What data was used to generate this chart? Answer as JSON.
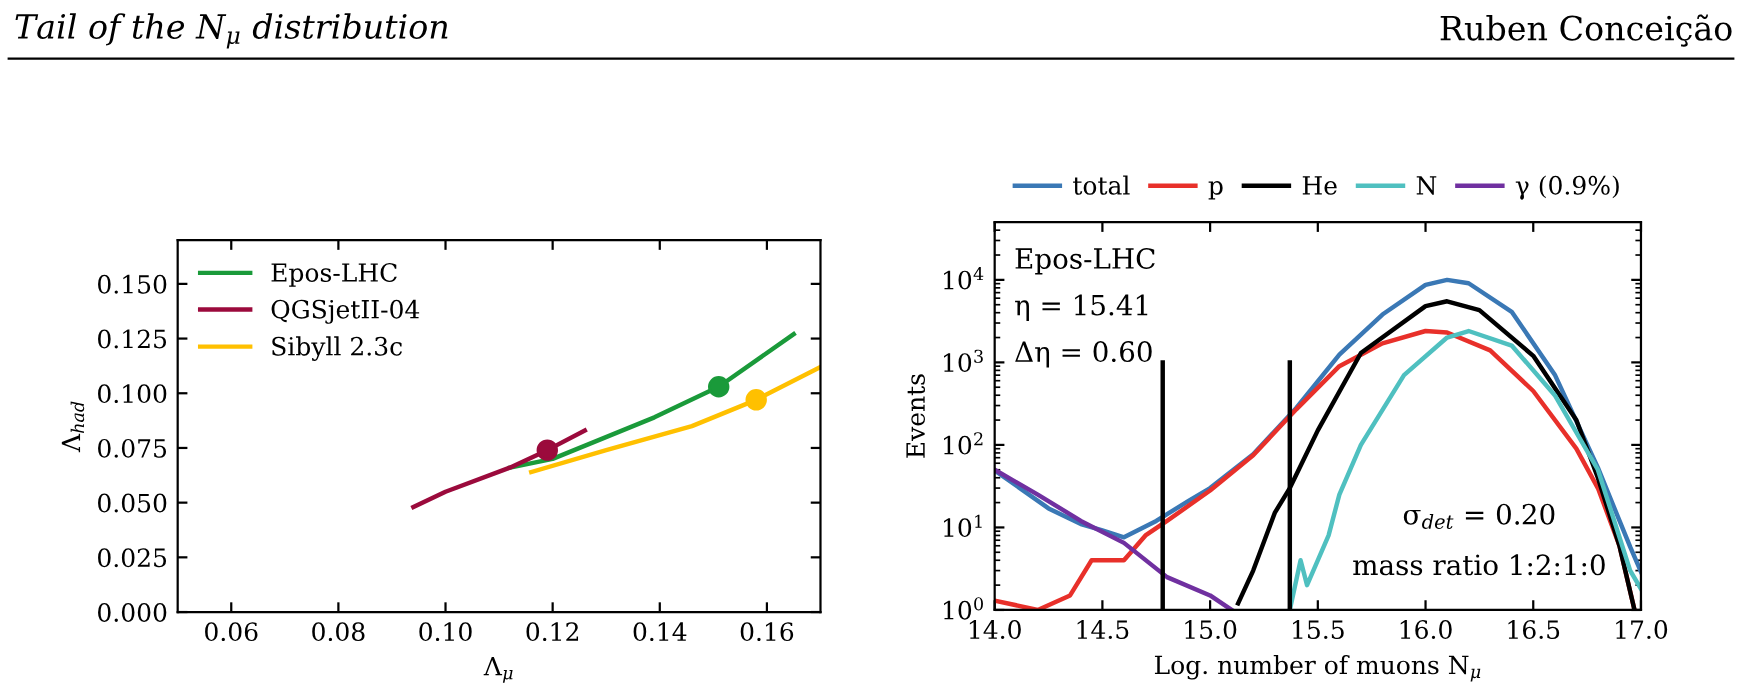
{
  "chart_data": [
    {
      "type": "line",
      "annotations": [
        "Tail of the N$_{μ}$ distribution"
      ],
      "xlabel": "Λ$_{μ}$",
      "ylabel": "Λ$_{had}$",
      "xlim": [
        0.05,
        0.17
      ],
      "ylim": [
        0,
        0.17
      ],
      "xticks": [
        0.06,
        0.08,
        {
          "value": 0.1,
          "label": "0.10"
        },
        0.12,
        0.14,
        0.16
      ],
      "yticks": [
        {
          "value": 0,
          "label": "0.000"
        },
        {
          "value": 0.025,
          "label": "0.025"
        },
        {
          "value": 0.05,
          "label": "0.050"
        },
        {
          "value": 0.075,
          "label": "0.075"
        },
        {
          "value": 0.1,
          "label": "0.100"
        },
        {
          "value": 0.125,
          "label": "0.125"
        },
        {
          "value": 0.15,
          "label": "0.150"
        }
      ],
      "legend": "top left",
      "grid": false,
      "series": [
        {
          "name": "Epos-LHC",
          "color": "#1a9a3a",
          "x": [
            0.112,
            0.12,
            0.139,
            0.151,
            0.165
          ],
          "values": [
            0.066,
            0.07,
            0.089,
            0.103,
            0.127
          ]
        },
        {
          "name": "QGSjetII-04",
          "color": "#9b0a3c",
          "x": [
            0.094,
            0.1,
            0.112,
            0.119,
            0.126
          ],
          "values": [
            0.048,
            0.055,
            0.066,
            0.074,
            0.083
          ]
        },
        {
          "name": "Sibyll 2.3c",
          "color": "#ffc000",
          "x": [
            0.116,
            0.13,
            0.146,
            0.158,
            0.17
          ],
          "values": [
            0.064,
            0.074,
            0.085,
            0.097,
            0.112
          ]
        },
        {
          "type": "scatter",
          "color": "#1a9a3a",
          "x": [
            0.151
          ],
          "values": [
            0.103
          ]
        },
        {
          "type": "scatter",
          "color": "#9b0a3c",
          "x": [
            0.119
          ],
          "values": [
            0.074
          ]
        },
        {
          "type": "scatter",
          "color": "#ffc000",
          "x": [
            0.158
          ],
          "values": [
            0.097
          ]
        }
      ]
    },
    {
      "type": "line",
      "annotations": [
        "Ruben Conceição",
        "Epos-LHC",
        "η = 15.41",
        "Δη = 0.60",
        "σ$_{det}$ = 0.20",
        "mass ratio 1:2:1:0"
      ],
      "xlabel": "Log. number of muons N$_{μ}$",
      "ylabel": "Events",
      "log": "y",
      "xlim": [
        14,
        17
      ],
      "ylim": [
        1,
        50000
      ],
      "xticks": [
        {
          "value": 14,
          "label": "14.0"
        },
        {
          "value": 14.5,
          "label": "14.5"
        },
        {
          "value": 15,
          "label": "15.0"
        },
        {
          "value": 15.5,
          "label": "15.5"
        },
        {
          "value": 16,
          "label": "16.0"
        },
        {
          "value": 16.5,
          "label": "16.5"
        },
        {
          "value": 17,
          "label": "17.0"
        }
      ],
      "yticks": [
        {
          "value": 1,
          "label": "10$^{0}$"
        },
        {
          "value": 10,
          "label": "10$^{1}$"
        },
        {
          "value": 100,
          "label": "10$^{2}$"
        },
        {
          "value": 1000,
          "label": "10$^{3}$"
        },
        {
          "value": 10000,
          "label": "10$^{4}$"
        }
      ],
      "legend": "top",
      "grid": false,
      "series": [
        {
          "name": "total",
          "color": "#3a78b5",
          "x": [
            14.0,
            14.25,
            14.4,
            14.5,
            14.6,
            14.75,
            14.9,
            15.0,
            15.2,
            15.4,
            15.6,
            15.8,
            16.0,
            16.1,
            16.2,
            16.4,
            16.6,
            16.8,
            16.95,
            17.0
          ],
          "values": [
            49,
            17,
            11,
            9.2,
            7.6,
            12,
            21,
            30,
            77,
            280,
            1240,
            3800,
            8700,
            10000,
            9100,
            4100,
            710,
            53,
            5.8,
            2.9
          ]
        },
        {
          "name": "p",
          "color": "#e8302a",
          "x": [
            14.0,
            14.2,
            14.35,
            14.45,
            14.6,
            14.7,
            14.8,
            15.0,
            15.2,
            15.4,
            15.6,
            15.8,
            16.0,
            16.1,
            16.3,
            16.5,
            16.7,
            16.8,
            16.9,
            16.97
          ],
          "values": [
            1.3,
            1.0,
            1.5,
            4,
            4,
            8,
            12,
            28,
            75,
            270,
            900,
            1700,
            2400,
            2300,
            1400,
            450,
            90,
            30,
            6,
            1
          ]
        },
        {
          "name": "He",
          "color": "#000000",
          "x": [
            15.13,
            15.2,
            15.3,
            15.37,
            15.5,
            15.7,
            16.0,
            16.1,
            16.25,
            16.5,
            16.7,
            16.8,
            16.9,
            16.97
          ],
          "values": [
            1.2,
            3,
            15,
            30,
            150,
            1300,
            4800,
            5500,
            4300,
            1200,
            200,
            40,
            6,
            1
          ]
        },
        {
          "name": "N",
          "color": "#4fc0c0",
          "x": [
            15.37,
            15.42,
            15.45,
            15.55,
            15.6,
            15.7,
            15.9,
            16.1,
            16.2,
            16.4,
            16.6,
            16.8,
            16.95,
            17.0
          ],
          "values": [
            1,
            4,
            2,
            8,
            25,
            100,
            700,
            2000,
            2400,
            1600,
            400,
            50,
            3,
            1.8
          ]
        },
        {
          "name": "γ (0.9%)",
          "color": "#7030a0",
          "x": [
            14.0,
            14.2,
            14.4,
            14.6,
            14.8,
            15.0,
            15.1
          ],
          "values": [
            50,
            25,
            12,
            6.5,
            2.5,
            1.5,
            1
          ]
        },
        {
          "color": "#000000",
          "x": [
            14.78,
            14.78
          ],
          "values": [
            1,
            1000
          ]
        },
        {
          "color": "#000000",
          "x": [
            15.37,
            15.37
          ],
          "values": [
            1,
            1000
          ]
        }
      ]
    }
  ]
}
